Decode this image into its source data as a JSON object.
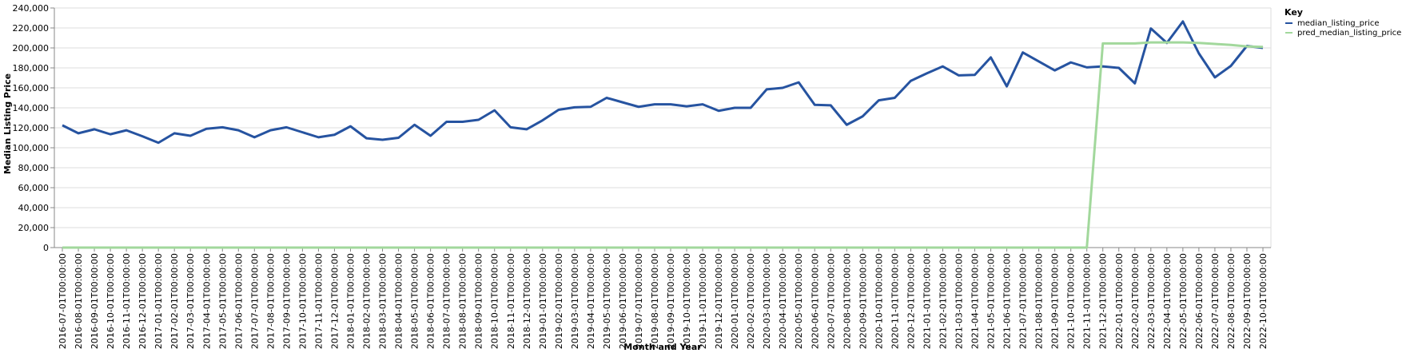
{
  "chart_data": {
    "type": "line",
    "xlabel": "Month and Year",
    "ylabel": "Median Listing Price",
    "ylim": [
      0,
      240000
    ],
    "yticks": [
      0,
      20000,
      40000,
      60000,
      80000,
      100000,
      120000,
      140000,
      160000,
      180000,
      200000,
      220000,
      240000
    ],
    "ytick_labels": [
      "0",
      "20,000",
      "40,000",
      "60,000",
      "80,000",
      "100,000",
      "120,000",
      "140,000",
      "160,000",
      "180,000",
      "200,000",
      "220,000",
      "240,000"
    ],
    "grid": true,
    "legend_title": "Key",
    "legend_position": "top-right",
    "x": [
      "2016-07-01T00:00:00",
      "2016-08-01T00:00:00",
      "2016-09-01T00:00:00",
      "2016-10-01T00:00:00",
      "2016-11-01T00:00:00",
      "2016-12-01T00:00:00",
      "2017-01-01T00:00:00",
      "2017-02-01T00:00:00",
      "2017-03-01T00:00:00",
      "2017-04-01T00:00:00",
      "2017-05-01T00:00:00",
      "2017-06-01T00:00:00",
      "2017-07-01T00:00:00",
      "2017-08-01T00:00:00",
      "2017-09-01T00:00:00",
      "2017-10-01T00:00:00",
      "2017-11-01T00:00:00",
      "2017-12-01T00:00:00",
      "2018-01-01T00:00:00",
      "2018-02-01T00:00:00",
      "2018-03-01T00:00:00",
      "2018-04-01T00:00:00",
      "2018-05-01T00:00:00",
      "2018-06-01T00:00:00",
      "2018-07-01T00:00:00",
      "2018-08-01T00:00:00",
      "2018-09-01T00:00:00",
      "2018-10-01T00:00:00",
      "2018-11-01T00:00:00",
      "2018-12-01T00:00:00",
      "2019-01-01T00:00:00",
      "2019-02-01T00:00:00",
      "2019-03-01T00:00:00",
      "2019-04-01T00:00:00",
      "2019-05-01T00:00:00",
      "2019-06-01T00:00:00",
      "2019-07-01T00:00:00",
      "2019-08-01T00:00:00",
      "2019-09-01T00:00:00",
      "2019-10-01T00:00:00",
      "2019-11-01T00:00:00",
      "2019-12-01T00:00:00",
      "2020-01-01T00:00:00",
      "2020-02-01T00:00:00",
      "2020-03-01T00:00:00",
      "2020-04-01T00:00:00",
      "2020-05-01T00:00:00",
      "2020-06-01T00:00:00",
      "2020-07-01T00:00:00",
      "2020-08-01T00:00:00",
      "2020-09-01T00:00:00",
      "2020-10-01T00:00:00",
      "2020-11-01T00:00:00",
      "2020-12-01T00:00:00",
      "2021-01-01T00:00:00",
      "2021-02-01T00:00:00",
      "2021-03-01T00:00:00",
      "2021-04-01T00:00:00",
      "2021-05-01T00:00:00",
      "2021-06-01T00:00:00",
      "2021-07-01T00:00:00",
      "2021-08-01T00:00:00",
      "2021-09-01T00:00:00",
      "2021-10-01T00:00:00",
      "2021-11-01T00:00:00",
      "2021-12-01T00:00:00",
      "2022-01-01T00:00:00",
      "2022-02-01T00:00:00",
      "2022-03-01T00:00:00",
      "2022-04-01T00:00:00",
      "2022-05-01T00:00:00",
      "2022-06-01T00:00:00",
      "2022-07-01T00:00:00",
      "2022-08-01T00:00:00",
      "2022-09-01T00:00:00",
      "2022-10-01T00:00:00"
    ],
    "series": [
      {
        "name": "median_listing_price",
        "color": "#2653a0",
        "values": [
          122500,
          114500,
          118500,
          113500,
          117500,
          111500,
          105000,
          114500,
          112000,
          119000,
          120500,
          117500,
          110500,
          117500,
          120500,
          115500,
          110500,
          113000,
          121500,
          109500,
          108000,
          110000,
          123000,
          112000,
          126000,
          126000,
          128000,
          137500,
          120500,
          118500,
          127500,
          138000,
          140500,
          141000,
          150000,
          145500,
          141000,
          143500,
          143500,
          141500,
          143500,
          137000,
          140000,
          140000,
          158500,
          160000,
          165500,
          143000,
          142500,
          123000,
          131500,
          147500,
          150000,
          167000,
          174500,
          181500,
          172500,
          173000,
          190500,
          161500,
          195500,
          186500,
          177500,
          185500,
          180500,
          181500,
          180000,
          164500,
          219500,
          205000,
          226500,
          194500,
          170500,
          182000,
          202000,
          200000
        ]
      },
      {
        "name": "pred_median_listing_price",
        "color": "#a2d89c",
        "values": [
          0,
          0,
          0,
          0,
          0,
          0,
          0,
          0,
          0,
          0,
          0,
          0,
          0,
          0,
          0,
          0,
          0,
          0,
          0,
          0,
          0,
          0,
          0,
          0,
          0,
          0,
          0,
          0,
          0,
          0,
          0,
          0,
          0,
          0,
          0,
          0,
          0,
          0,
          0,
          0,
          0,
          0,
          0,
          0,
          0,
          0,
          0,
          0,
          0,
          0,
          0,
          0,
          0,
          0,
          0,
          0,
          0,
          0,
          0,
          0,
          0,
          0,
          0,
          0,
          0,
          204500,
          204500,
          204500,
          205500,
          205500,
          205500,
          205000,
          204000,
          203000,
          201500,
          201000
        ]
      }
    ]
  }
}
